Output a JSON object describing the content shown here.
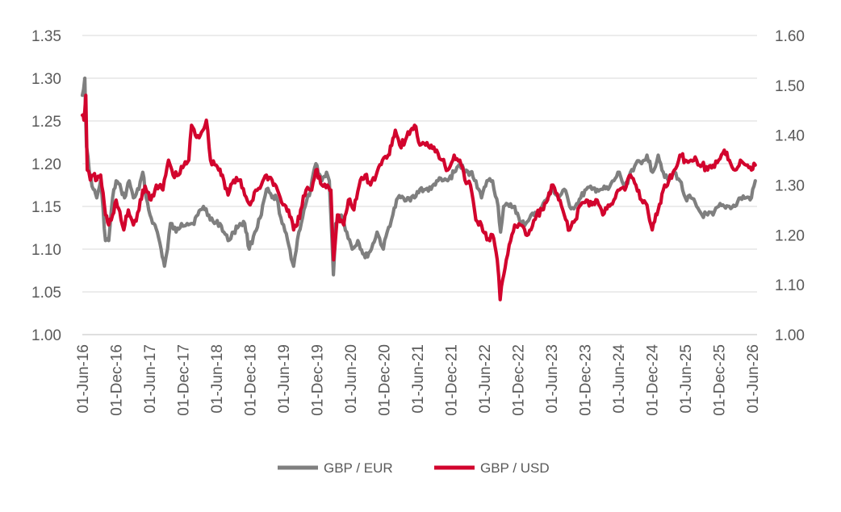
{
  "chart_data": {
    "type": "line",
    "title": "",
    "xlabel": "",
    "ylabel": "",
    "grid": true,
    "legend_position": "bottom",
    "x_start": "2016-06-01",
    "x_end": "2026-08-15",
    "x_tick_labels": [
      "01-Jun-16",
      "01-Dec-16",
      "01-Jun-17",
      "01-Dec-17",
      "01-Jun-18",
      "01-Dec-18",
      "01-Jun-19",
      "01-Dec-19",
      "01-Jun-20",
      "01-Dec-20",
      "01-Jun-21",
      "01-Dec-21",
      "01-Jun-22",
      "01-Dec-22",
      "01-Jun-23",
      "01-Dec-23",
      "01-Jun-24",
      "01-Dec-24",
      "01-Jun-25",
      "01-Dec-25",
      "01-Jun-26"
    ],
    "y_left": {
      "min": 1.0,
      "max": 1.35,
      "tick_labels": [
        "1.00",
        "1.05",
        "1.10",
        "1.15",
        "1.20",
        "1.25",
        "1.30",
        "1.35"
      ]
    },
    "y_right": {
      "min": 1.0,
      "max": 1.6,
      "tick_labels": [
        "1.00",
        "1.10",
        "1.20",
        "1.30",
        "1.40",
        "1.50",
        "1.60"
      ]
    },
    "series": [
      {
        "name": "GBP / EUR",
        "axis": "left",
        "color": "#7f7f7f",
        "points": [
          [
            "2016-06-01",
            1.28
          ],
          [
            "2016-06-15",
            1.3
          ],
          [
            "2016-06-24",
            1.22
          ],
          [
            "2016-07-10",
            1.19
          ],
          [
            "2016-08-01",
            1.17
          ],
          [
            "2016-08-20",
            1.16
          ],
          [
            "2016-09-10",
            1.18
          ],
          [
            "2016-10-07",
            1.11
          ],
          [
            "2016-10-25",
            1.11
          ],
          [
            "2016-11-15",
            1.16
          ],
          [
            "2016-12-05",
            1.18
          ],
          [
            "2017-01-01",
            1.17
          ],
          [
            "2017-01-20",
            1.16
          ],
          [
            "2017-02-15",
            1.18
          ],
          [
            "2017-03-10",
            1.16
          ],
          [
            "2017-04-10",
            1.17
          ],
          [
            "2017-05-01",
            1.19
          ],
          [
            "2017-05-20",
            1.16
          ],
          [
            "2017-06-10",
            1.14
          ],
          [
            "2017-07-01",
            1.13
          ],
          [
            "2017-07-20",
            1.12
          ],
          [
            "2017-08-10",
            1.1
          ],
          [
            "2017-08-29",
            1.08
          ],
          [
            "2017-09-15",
            1.1
          ],
          [
            "2017-10-01",
            1.13
          ],
          [
            "2017-11-01",
            1.12
          ],
          [
            "2017-12-01",
            1.13
          ],
          [
            "2018-01-01",
            1.13
          ],
          [
            "2018-02-01",
            1.13
          ],
          [
            "2018-03-01",
            1.14
          ],
          [
            "2018-04-01",
            1.15
          ],
          [
            "2018-05-01",
            1.14
          ],
          [
            "2018-06-01",
            1.13
          ],
          [
            "2018-07-01",
            1.13
          ],
          [
            "2018-08-15",
            1.11
          ],
          [
            "2018-09-15",
            1.12
          ],
          [
            "2018-10-20",
            1.13
          ],
          [
            "2018-11-15",
            1.13
          ],
          [
            "2018-12-10",
            1.1
          ],
          [
            "2019-01-10",
            1.12
          ],
          [
            "2019-02-15",
            1.14
          ],
          [
            "2019-03-15",
            1.17
          ],
          [
            "2019-04-15",
            1.16
          ],
          [
            "2019-05-10",
            1.16
          ],
          [
            "2019-06-10",
            1.13
          ],
          [
            "2019-07-10",
            1.11
          ],
          [
            "2019-08-12",
            1.08
          ],
          [
            "2019-09-10",
            1.12
          ],
          [
            "2019-10-15",
            1.15
          ],
          [
            "2019-11-15",
            1.17
          ],
          [
            "2019-12-13",
            1.2
          ],
          [
            "2020-01-15",
            1.18
          ],
          [
            "2020-02-10",
            1.19
          ],
          [
            "2020-02-25",
            1.18
          ],
          [
            "2020-03-19",
            1.07
          ],
          [
            "2020-04-01",
            1.13
          ],
          [
            "2020-05-01",
            1.14
          ],
          [
            "2020-06-01",
            1.12
          ],
          [
            "2020-07-01",
            1.1
          ],
          [
            "2020-08-01",
            1.11
          ],
          [
            "2020-09-10",
            1.09
          ],
          [
            "2020-10-15",
            1.1
          ],
          [
            "2020-11-15",
            1.12
          ],
          [
            "2020-12-20",
            1.1
          ],
          [
            "2021-01-10",
            1.12
          ],
          [
            "2021-02-10",
            1.14
          ],
          [
            "2021-03-10",
            1.16
          ],
          [
            "2021-04-10",
            1.16
          ],
          [
            "2021-05-10",
            1.16
          ],
          [
            "2021-06-10",
            1.16
          ],
          [
            "2021-07-10",
            1.17
          ],
          [
            "2021-08-10",
            1.17
          ],
          [
            "2021-09-10",
            1.17
          ],
          [
            "2021-10-10",
            1.18
          ],
          [
            "2021-11-10",
            1.18
          ],
          [
            "2021-12-10",
            1.18
          ],
          [
            "2022-01-15",
            1.19
          ],
          [
            "2022-02-15",
            1.2
          ],
          [
            "2022-03-15",
            1.19
          ],
          [
            "2022-04-15",
            1.19
          ],
          [
            "2022-05-15",
            1.18
          ],
          [
            "2022-06-15",
            1.16
          ],
          [
            "2022-07-15",
            1.18
          ],
          [
            "2022-08-15",
            1.18
          ],
          [
            "2022-09-15",
            1.15
          ],
          [
            "2022-09-28",
            1.12
          ],
          [
            "2022-10-15",
            1.15
          ],
          [
            "2022-11-15",
            1.15
          ],
          [
            "2022-12-15",
            1.15
          ],
          [
            "2023-01-15",
            1.13
          ],
          [
            "2023-02-15",
            1.13
          ],
          [
            "2023-03-15",
            1.14
          ],
          [
            "2023-04-15",
            1.14
          ],
          [
            "2023-05-15",
            1.15
          ],
          [
            "2023-06-15",
            1.16
          ],
          [
            "2023-07-15",
            1.17
          ],
          [
            "2023-08-15",
            1.16
          ],
          [
            "2023-09-15",
            1.17
          ],
          [
            "2023-10-15",
            1.15
          ],
          [
            "2023-11-15",
            1.15
          ],
          [
            "2023-12-15",
            1.16
          ],
          [
            "2024-01-15",
            1.17
          ],
          [
            "2024-02-15",
            1.17
          ],
          [
            "2024-03-15",
            1.17
          ],
          [
            "2024-04-15",
            1.17
          ],
          [
            "2024-05-15",
            1.17
          ],
          [
            "2024-06-15",
            1.18
          ],
          [
            "2024-07-15",
            1.19
          ],
          [
            "2024-08-15",
            1.17
          ],
          [
            "2024-09-15",
            1.19
          ],
          [
            "2024-10-15",
            1.2
          ],
          [
            "2024-11-15",
            1.2
          ],
          [
            "2024-12-15",
            1.21
          ],
          [
            "2025-01-15",
            1.19
          ],
          [
            "2025-02-15",
            1.21
          ],
          [
            "2025-03-15",
            1.19
          ],
          [
            "2025-04-15",
            1.18
          ],
          [
            "2025-05-15",
            1.19
          ],
          [
            "2025-06-15",
            1.18
          ],
          [
            "2025-07-15",
            1.16
          ],
          [
            "2025-08-15",
            1.16
          ],
          [
            "2025-09-15",
            1.15
          ],
          [
            "2025-10-15",
            1.14
          ],
          [
            "2025-11-15",
            1.14
          ],
          [
            "2025-12-15",
            1.14
          ],
          [
            "2026-01-15",
            1.15
          ],
          [
            "2026-02-15",
            1.15
          ],
          [
            "2026-03-15",
            1.15
          ],
          [
            "2026-04-15",
            1.15
          ],
          [
            "2026-05-15",
            1.16
          ],
          [
            "2026-06-15",
            1.16
          ],
          [
            "2026-07-15",
            1.16
          ],
          [
            "2026-08-05",
            1.18
          ]
        ]
      },
      {
        "name": "GBP / USD",
        "axis": "right",
        "color": "#d2042d",
        "points": [
          [
            "2016-06-01",
            1.44
          ],
          [
            "2016-06-10",
            1.43
          ],
          [
            "2016-06-20",
            1.48
          ],
          [
            "2016-06-28",
            1.33
          ],
          [
            "2016-07-15",
            1.31
          ],
          [
            "2016-08-01",
            1.32
          ],
          [
            "2016-08-20",
            1.31
          ],
          [
            "2016-09-10",
            1.32
          ],
          [
            "2016-10-07",
            1.24
          ],
          [
            "2016-10-25",
            1.22
          ],
          [
            "2016-11-15",
            1.24
          ],
          [
            "2016-12-05",
            1.27
          ],
          [
            "2017-01-01",
            1.23
          ],
          [
            "2017-01-16",
            1.21
          ],
          [
            "2017-02-10",
            1.25
          ],
          [
            "2017-03-10",
            1.22
          ],
          [
            "2017-04-10",
            1.25
          ],
          [
            "2017-05-01",
            1.29
          ],
          [
            "2017-05-20",
            1.29
          ],
          [
            "2017-06-15",
            1.27
          ],
          [
            "2017-07-15",
            1.3
          ],
          [
            "2017-08-20",
            1.29
          ],
          [
            "2017-09-20",
            1.35
          ],
          [
            "2017-10-15",
            1.32
          ],
          [
            "2017-11-15",
            1.32
          ],
          [
            "2017-12-15",
            1.34
          ],
          [
            "2018-01-10",
            1.35
          ],
          [
            "2018-01-25",
            1.42
          ],
          [
            "2018-02-15",
            1.4
          ],
          [
            "2018-03-15",
            1.4
          ],
          [
            "2018-04-17",
            1.43
          ],
          [
            "2018-05-10",
            1.35
          ],
          [
            "2018-06-10",
            1.34
          ],
          [
            "2018-07-15",
            1.32
          ],
          [
            "2018-08-15",
            1.28
          ],
          [
            "2018-09-15",
            1.31
          ],
          [
            "2018-10-15",
            1.31
          ],
          [
            "2018-11-15",
            1.28
          ],
          [
            "2018-12-15",
            1.26
          ],
          [
            "2019-01-15",
            1.29
          ],
          [
            "2019-02-15",
            1.3
          ],
          [
            "2019-03-15",
            1.32
          ],
          [
            "2019-04-15",
            1.31
          ],
          [
            "2019-05-15",
            1.29
          ],
          [
            "2019-06-15",
            1.26
          ],
          [
            "2019-07-15",
            1.25
          ],
          [
            "2019-08-12",
            1.21
          ],
          [
            "2019-09-01",
            1.22
          ],
          [
            "2019-09-20",
            1.25
          ],
          [
            "2019-10-20",
            1.29
          ],
          [
            "2019-11-20",
            1.29
          ],
          [
            "2019-12-13",
            1.33
          ],
          [
            "2020-01-15",
            1.3
          ],
          [
            "2020-02-15",
            1.3
          ],
          [
            "2020-03-05",
            1.29
          ],
          [
            "2020-03-20",
            1.15
          ],
          [
            "2020-04-10",
            1.24
          ],
          [
            "2020-05-15",
            1.22
          ],
          [
            "2020-06-10",
            1.27
          ],
          [
            "2020-07-10",
            1.25
          ],
          [
            "2020-08-15",
            1.31
          ],
          [
            "2020-09-10",
            1.32
          ],
          [
            "2020-10-10",
            1.3
          ],
          [
            "2020-11-10",
            1.32
          ],
          [
            "2020-12-15",
            1.35
          ],
          [
            "2021-01-15",
            1.36
          ],
          [
            "2021-02-24",
            1.41
          ],
          [
            "2021-03-20",
            1.38
          ],
          [
            "2021-04-20",
            1.39
          ],
          [
            "2021-05-20",
            1.41
          ],
          [
            "2021-06-10",
            1.42
          ],
          [
            "2021-07-10",
            1.38
          ],
          [
            "2021-08-10",
            1.38
          ],
          [
            "2021-09-10",
            1.38
          ],
          [
            "2021-10-10",
            1.37
          ],
          [
            "2021-11-10",
            1.35
          ],
          [
            "2021-12-10",
            1.33
          ],
          [
            "2022-01-15",
            1.36
          ],
          [
            "2022-02-15",
            1.35
          ],
          [
            "2022-03-15",
            1.31
          ],
          [
            "2022-04-15",
            1.3
          ],
          [
            "2022-05-15",
            1.23
          ],
          [
            "2022-06-15",
            1.22
          ],
          [
            "2022-07-15",
            1.19
          ],
          [
            "2022-08-15",
            1.2
          ],
          [
            "2022-09-10",
            1.15
          ],
          [
            "2022-09-26",
            1.07
          ],
          [
            "2022-10-10",
            1.11
          ],
          [
            "2022-10-30",
            1.15
          ],
          [
            "2022-11-15",
            1.18
          ],
          [
            "2022-12-15",
            1.22
          ],
          [
            "2023-01-15",
            1.22
          ],
          [
            "2023-02-15",
            1.2
          ],
          [
            "2023-03-15",
            1.21
          ],
          [
            "2023-04-15",
            1.24
          ],
          [
            "2023-05-15",
            1.25
          ],
          [
            "2023-06-15",
            1.27
          ],
          [
            "2023-07-15",
            1.3
          ],
          [
            "2023-08-15",
            1.27
          ],
          [
            "2023-09-15",
            1.24
          ],
          [
            "2023-10-15",
            1.21
          ],
          [
            "2023-11-15",
            1.23
          ],
          [
            "2023-12-15",
            1.26
          ],
          [
            "2024-01-15",
            1.27
          ],
          [
            "2024-02-15",
            1.26
          ],
          [
            "2024-03-15",
            1.27
          ],
          [
            "2024-04-15",
            1.24
          ],
          [
            "2024-05-15",
            1.26
          ],
          [
            "2024-06-15",
            1.27
          ],
          [
            "2024-07-15",
            1.29
          ],
          [
            "2024-08-15",
            1.29
          ],
          [
            "2024-09-15",
            1.32
          ],
          [
            "2024-10-15",
            1.3
          ],
          [
            "2024-11-15",
            1.27
          ],
          [
            "2024-12-15",
            1.26
          ],
          [
            "2025-01-13",
            1.21
          ],
          [
            "2025-02-15",
            1.25
          ],
          [
            "2025-03-15",
            1.29
          ],
          [
            "2025-04-15",
            1.31
          ],
          [
            "2025-05-15",
            1.33
          ],
          [
            "2025-06-15",
            1.36
          ],
          [
            "2025-07-15",
            1.35
          ],
          [
            "2025-08-15",
            1.35
          ],
          [
            "2025-09-15",
            1.35
          ],
          [
            "2025-10-15",
            1.34
          ],
          [
            "2025-11-15",
            1.33
          ],
          [
            "2025-12-15",
            1.34
          ],
          [
            "2026-01-15",
            1.35
          ],
          [
            "2026-02-15",
            1.37
          ],
          [
            "2026-03-15",
            1.35
          ],
          [
            "2026-04-15",
            1.33
          ],
          [
            "2026-05-15",
            1.35
          ],
          [
            "2026-06-15",
            1.34
          ],
          [
            "2026-07-15",
            1.33
          ],
          [
            "2026-08-05",
            1.34
          ]
        ]
      }
    ]
  }
}
